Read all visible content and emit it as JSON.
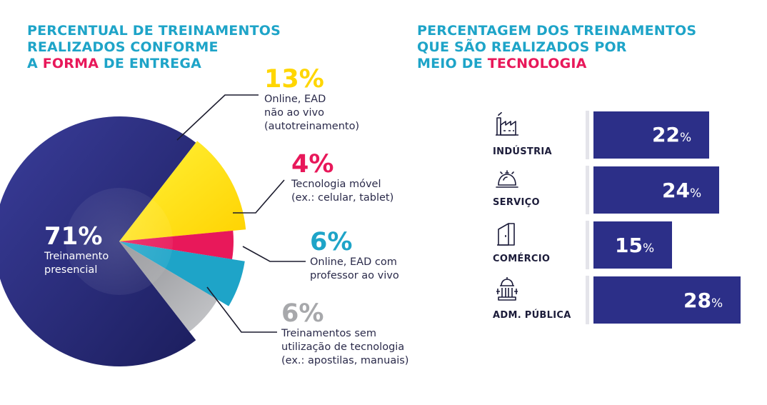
{
  "left_title": {
    "line1": "PERCENTUAL DE TREINAMENTOS",
    "line2": "REALIZADOS CONFORME",
    "line3_before": "A ",
    "line3_accent": "FORMA",
    "line3_after": " DE ENTREGA"
  },
  "right_title": {
    "line1": "PERCENTAGEM DOS TREINAMENTOS",
    "line2": "QUE SÃO REALIZADOS POR",
    "line3_before": "MEIO DE ",
    "line3_accent": "TECNOLOGIA"
  },
  "chart_data": [
    {
      "type": "pie",
      "slices": [
        {
          "key": "presencial",
          "value": 71,
          "pct": "71%",
          "color": "#2c2f88",
          "lines": [
            "Treinamento",
            "presencial"
          ]
        },
        {
          "key": "ead",
          "value": 13,
          "pct": "13%",
          "color": "#ffe21a",
          "lines": [
            "Online, EAD",
            "não ao vivo",
            "(autotreinamento)"
          ]
        },
        {
          "key": "movel",
          "value": 4,
          "pct": "4%",
          "color": "#e8185a",
          "lines": [
            "Tecnologia móvel",
            "(ex.: celular, tablet)"
          ]
        },
        {
          "key": "aovivo",
          "value": 6,
          "pct": "6%",
          "color": "#1ea4c8",
          "lines": [
            "Online, EAD com",
            "professor ao vivo"
          ]
        },
        {
          "key": "sem",
          "value": 6,
          "pct": "6%",
          "color": "#a7a8ab",
          "lines": [
            "Treinamentos sem",
            "utilização de tecnologia",
            "(ex.: apostilas, manuais)"
          ]
        }
      ]
    },
    {
      "type": "bar",
      "orientation": "horizontal",
      "categories": [
        "INDÚSTRIA",
        "SERVIÇO",
        "COMÉRCIO",
        "ADM. PÚBLICA"
      ],
      "values": [
        22,
        24,
        15,
        28
      ],
      "unit": "%",
      "color": "#2c2f88",
      "icons": [
        "factory-icon",
        "service-bell-icon",
        "shop-door-icon",
        "government-building-icon"
      ]
    }
  ]
}
